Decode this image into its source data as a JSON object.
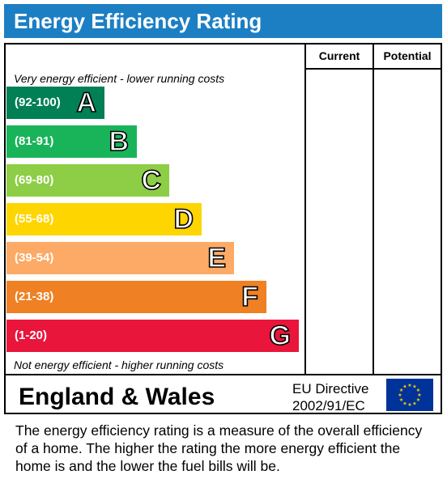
{
  "header": {
    "title": "Energy Efficiency Rating"
  },
  "columns": {
    "current": "Current",
    "potential": "Potential"
  },
  "captions": {
    "top": "Very energy efficient - lower running costs",
    "bottom": "Not energy efficient - higher running costs"
  },
  "chart_data": {
    "type": "bar",
    "title": "Energy Efficiency Rating",
    "categories": [
      "A",
      "B",
      "C",
      "D",
      "E",
      "F",
      "G"
    ],
    "ranges": [
      "(92-100)",
      "(81-91)",
      "(69-80)",
      "(55-68)",
      "(39-54)",
      "(21-38)",
      "(1-20)"
    ],
    "colors": [
      "#008054",
      "#19b459",
      "#8dce46",
      "#ffd500",
      "#fcaa65",
      "#ef8023",
      "#e9153b"
    ],
    "current": null,
    "potential": null
  },
  "footer": {
    "region": "England & Wales",
    "directive_line1": "EU Directive",
    "directive_line2": "2002/91/EC",
    "flag_icon": "eu-flag-icon",
    "flag_color": "#003399",
    "star_color": "#ffcc00"
  },
  "description": "The energy efficiency rating is a measure of the overall efficiency of a home.  The higher the rating the more energy efficient the home is and the lower the fuel bills will be."
}
